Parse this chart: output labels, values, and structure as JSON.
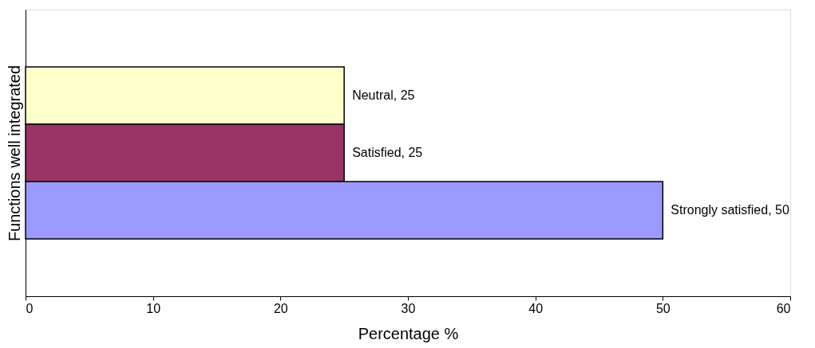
{
  "chart_data": {
    "type": "bar",
    "orientation": "horizontal",
    "categories": [
      null
    ],
    "xlabel": "Percentage %",
    "ylabel": "Functions well integrated",
    "series": [
      {
        "color": "#ffffcc",
        "values": [
          25
        ],
        "value_labels": [
          "Neutral, 25"
        ]
      },
      {
        "color": "#993366",
        "values": [
          25
        ],
        "value_labels": [
          "Satisfied, 25"
        ]
      },
      {
        "color": "#9999ff",
        "values": [
          50
        ],
        "value_labels": [
          "Strongly satisfied, 50"
        ]
      }
    ],
    "xlim": [
      0,
      60
    ],
    "xticks": [
      0,
      10,
      20,
      30,
      40,
      50,
      60
    ],
    "grid": false,
    "legend": false
  }
}
